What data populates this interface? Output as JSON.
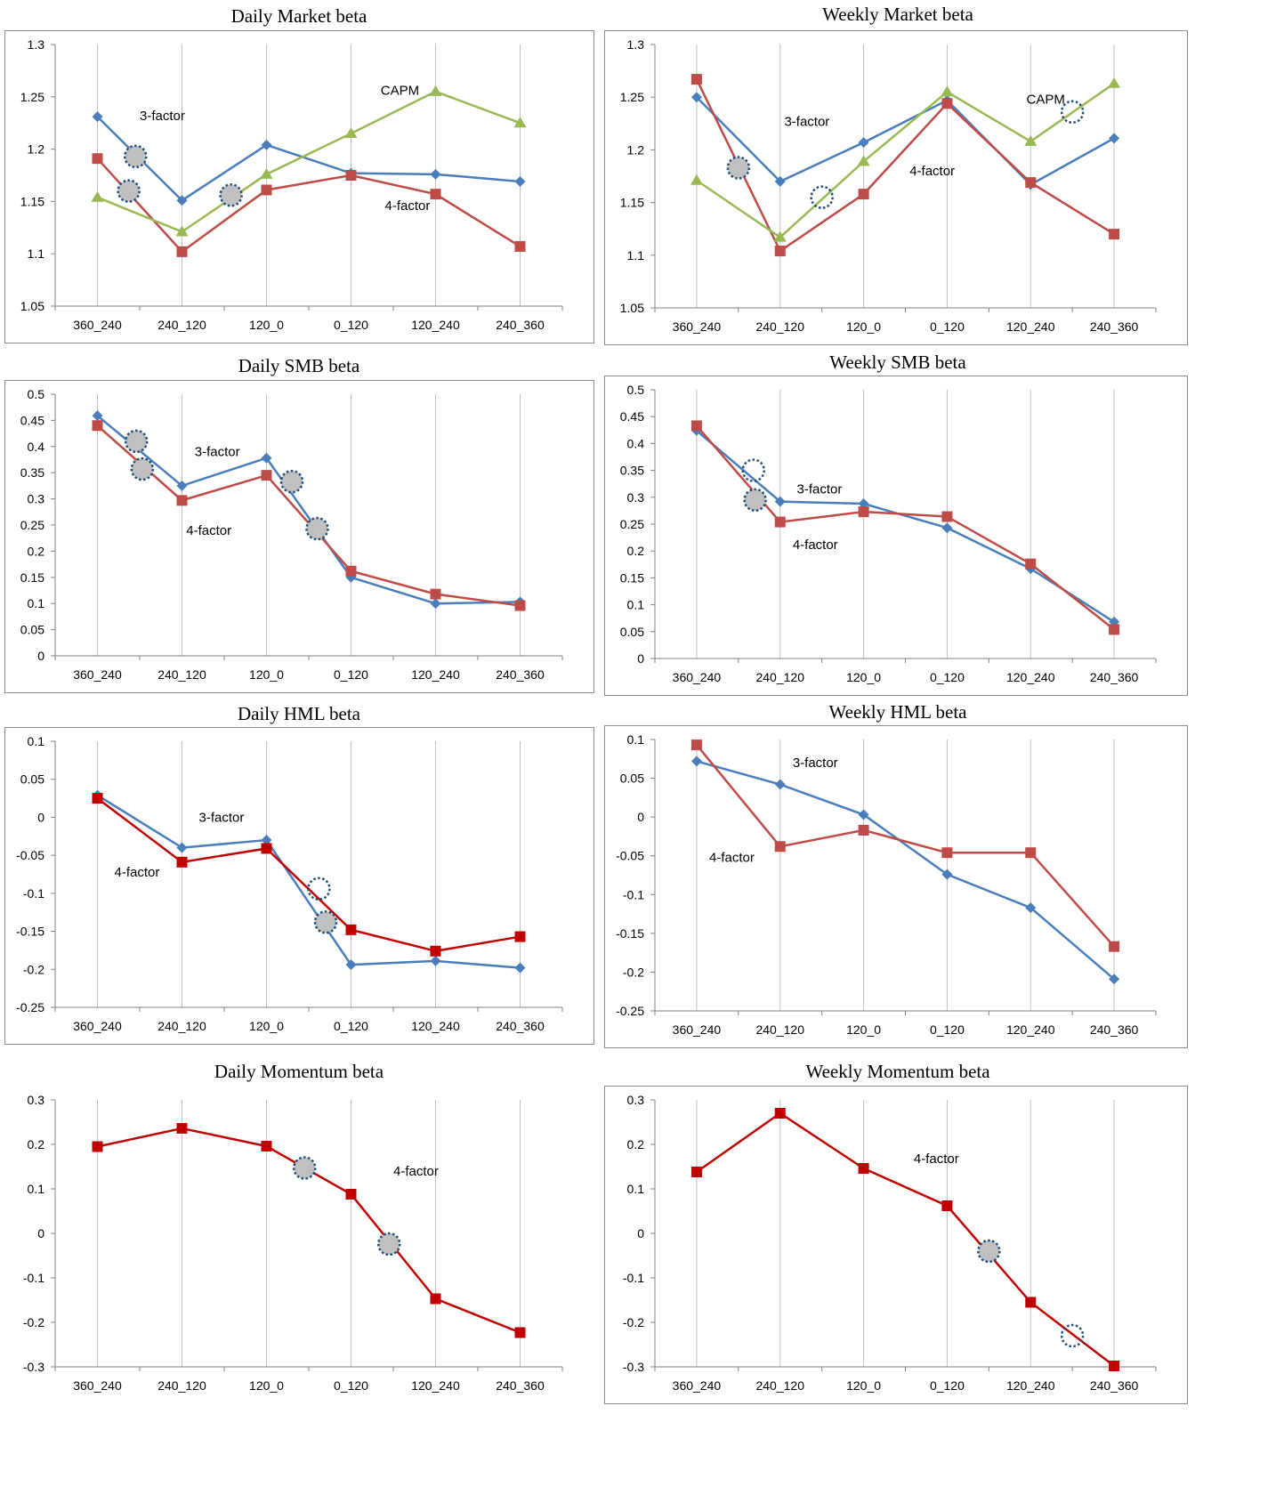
{
  "colors": {
    "3-factor": "#4a7ebb",
    "4-factor": "#be4b48",
    "CAPM": "#98b954",
    "4-factor-momentum": "#c00000",
    "marker_fill": "#c0c0c0",
    "marker_stroke": "#1f4e79",
    "gridline": "#bfbfbf",
    "axis": "#808080"
  },
  "chart_data": [
    {
      "id": "daily-market",
      "type": "line",
      "title": "Daily Market beta",
      "categories": [
        "360_240",
        "240_120",
        "120_0",
        "0_120",
        "120_240",
        "240_360"
      ],
      "ylim": [
        1.05,
        1.3
      ],
      "yticks": [
        "1.05",
        "1.1",
        "1.15",
        "1.2",
        "1.25",
        "1.3"
      ],
      "grid": "vertical",
      "series": [
        {
          "name": "3-factor",
          "marker": "diamond",
          "values": [
            1.231,
            1.151,
            1.204,
            1.177,
            1.176,
            1.169
          ]
        },
        {
          "name": "4-factor",
          "marker": "square",
          "values": [
            1.191,
            1.102,
            1.161,
            1.175,
            1.157,
            1.107
          ]
        },
        {
          "name": "CAPM",
          "marker": "triangle",
          "values": [
            1.154,
            1.121,
            1.176,
            1.215,
            1.255,
            1.225
          ]
        }
      ],
      "annotations": [
        {
          "text": "3-factor",
          "x": 0.5,
          "y": 1.232
        },
        {
          "text": "CAPM",
          "x": 3.35,
          "y": 1.256
        },
        {
          "text": "4-factor",
          "x": 3.4,
          "y": 1.146
        }
      ],
      "highlights": [
        {
          "x": 0.45,
          "y": 1.193,
          "filled": true
        },
        {
          "x": 0.37,
          "y": 1.16,
          "filled": true
        },
        {
          "x": 1.58,
          "y": 1.156,
          "filled": true
        }
      ]
    },
    {
      "id": "weekly-market",
      "type": "line",
      "title": "Weekly Market beta",
      "categories": [
        "360_240",
        "240_120",
        "120_0",
        "0_120",
        "120_240",
        "240_360"
      ],
      "ylim": [
        1.05,
        1.3
      ],
      "yticks": [
        "1.05",
        "1.1",
        "1.15",
        "1.2",
        "1.25",
        "1.3"
      ],
      "grid": "vertical",
      "series": [
        {
          "name": "3-factor",
          "marker": "diamond",
          "values": [
            1.25,
            1.17,
            1.207,
            1.247,
            1.167,
            1.211
          ]
        },
        {
          "name": "4-factor",
          "marker": "square",
          "values": [
            1.267,
            1.104,
            1.158,
            1.244,
            1.169,
            1.12
          ]
        },
        {
          "name": "CAPM",
          "marker": "triangle",
          "values": [
            1.171,
            1.117,
            1.189,
            1.255,
            1.208,
            1.263
          ]
        }
      ],
      "annotations": [
        {
          "text": "3-factor",
          "x": 1.05,
          "y": 1.227
        },
        {
          "text": "4-factor",
          "x": 2.55,
          "y": 1.18
        },
        {
          "text": "CAPM",
          "x": 3.95,
          "y": 1.248
        }
      ],
      "highlights": [
        {
          "x": 0.5,
          "y": 1.183,
          "filled": true
        },
        {
          "x": 1.5,
          "y": 1.155,
          "filled": false
        },
        {
          "x": 4.5,
          "y": 1.236,
          "filled": false
        }
      ]
    },
    {
      "id": "daily-smb",
      "type": "line",
      "title": "Daily SMB beta",
      "categories": [
        "360_240",
        "240_120",
        "120_0",
        "0_120",
        "120_240",
        "240_360"
      ],
      "ylim": [
        0,
        0.5
      ],
      "yticks": [
        "0",
        "0.05",
        "0.1",
        "0.15",
        "0.2",
        "0.25",
        "0.3",
        "0.35",
        "0.4",
        "0.45",
        "0.5"
      ],
      "grid": "vertical",
      "series": [
        {
          "name": "3-factor",
          "marker": "diamond",
          "values": [
            0.459,
            0.325,
            0.378,
            0.15,
            0.1,
            0.103
          ]
        },
        {
          "name": "4-factor",
          "marker": "square",
          "values": [
            0.44,
            0.297,
            0.345,
            0.162,
            0.118,
            0.096
          ]
        }
      ],
      "annotations": [
        {
          "text": "3-factor",
          "x": 1.15,
          "y": 0.39
        },
        {
          "text": "4-factor",
          "x": 1.05,
          "y": 0.24
        }
      ],
      "highlights": [
        {
          "x": 0.46,
          "y": 0.41,
          "filled": true
        },
        {
          "x": 0.53,
          "y": 0.357,
          "filled": true
        },
        {
          "x": 2.3,
          "y": 0.333,
          "filled": true
        },
        {
          "x": 2.6,
          "y": 0.243,
          "filled": true
        }
      ]
    },
    {
      "id": "weekly-smb",
      "type": "line",
      "title": "Weekly SMB beta",
      "categories": [
        "360_240",
        "240_120",
        "120_0",
        "0_120",
        "120_240",
        "240_360"
      ],
      "ylim": [
        0,
        0.5
      ],
      "yticks": [
        "0",
        "0.05",
        "0.1",
        "0.15",
        "0.2",
        "0.25",
        "0.3",
        "0.35",
        "0.4",
        "0.45",
        "0.5"
      ],
      "grid": "vertical",
      "series": [
        {
          "name": "3-factor",
          "marker": "diamond",
          "values": [
            0.424,
            0.292,
            0.288,
            0.243,
            0.167,
            0.068
          ]
        },
        {
          "name": "4-factor",
          "marker": "square",
          "values": [
            0.433,
            0.254,
            0.273,
            0.264,
            0.176,
            0.054
          ]
        }
      ],
      "annotations": [
        {
          "text": "3-factor",
          "x": 1.2,
          "y": 0.315
        },
        {
          "text": "4-factor",
          "x": 1.15,
          "y": 0.212
        }
      ],
      "highlights": [
        {
          "x": 0.68,
          "y": 0.35,
          "filled": false
        },
        {
          "x": 0.7,
          "y": 0.295,
          "filled": true
        }
      ]
    },
    {
      "id": "daily-hml",
      "type": "line",
      "title": "Daily HML beta",
      "categories": [
        "360_240",
        "240_120",
        "120_0",
        "0_120",
        "120_240",
        "240_360"
      ],
      "ylim": [
        -0.25,
        0.1
      ],
      "yticks": [
        "-0.25",
        "-0.2",
        "-0.15",
        "-0.1",
        "-0.05",
        "0",
        "0.05",
        "0.1"
      ],
      "grid": "vertical",
      "series": [
        {
          "name": "3-factor",
          "marker": "diamond",
          "values": [
            0.029,
            -0.04,
            -0.03,
            -0.194,
            -0.189,
            -0.198
          ]
        },
        {
          "name": "4-factor",
          "marker": "square",
          "values": [
            0.025,
            -0.059,
            -0.041,
            -0.148,
            -0.176,
            -0.157
          ]
        }
      ],
      "annotations": [
        {
          "text": "3-factor",
          "x": 1.2,
          "y": 0.0
        },
        {
          "text": "4-factor",
          "x": 0.2,
          "y": -0.072
        }
      ],
      "highlights": [
        {
          "x": 2.62,
          "y": -0.094,
          "filled": false
        },
        {
          "x": 2.7,
          "y": -0.138,
          "filled": true
        }
      ]
    },
    {
      "id": "weekly-hml",
      "type": "line",
      "title": "Weekly HML beta",
      "categories": [
        "360_240",
        "240_120",
        "120_0",
        "0_120",
        "120_240",
        "240_360"
      ],
      "ylim": [
        -0.25,
        0.1
      ],
      "yticks": [
        "-0.25",
        "-0.2",
        "-0.15",
        "-0.1",
        "-0.05",
        "0",
        "0.05",
        "0.1"
      ],
      "grid": "vertical",
      "series": [
        {
          "name": "3-factor",
          "marker": "diamond",
          "values": [
            0.072,
            0.042,
            0.003,
            -0.074,
            -0.117,
            -0.209
          ]
        },
        {
          "name": "4-factor",
          "marker": "square",
          "values": [
            0.093,
            -0.038,
            -0.017,
            -0.046,
            -0.046,
            -0.167
          ]
        }
      ],
      "annotations": [
        {
          "text": "3-factor",
          "x": 1.15,
          "y": 0.07
        },
        {
          "text": "4-factor",
          "x": 0.15,
          "y": -0.052
        }
      ],
      "highlights": []
    },
    {
      "id": "daily-momentum",
      "type": "line",
      "title": "Daily Momentum beta",
      "categories": [
        "360_240",
        "240_120",
        "120_0",
        "0_120",
        "120_240",
        "240_360"
      ],
      "ylim": [
        -0.3,
        0.3
      ],
      "yticks": [
        "-0.3",
        "-0.2",
        "-0.1",
        "0",
        "0.1",
        "0.2",
        "0.3"
      ],
      "grid": "vertical",
      "series": [
        {
          "name": "4-factor",
          "marker": "square",
          "values": [
            0.195,
            0.236,
            0.196,
            0.088,
            -0.147,
            -0.223
          ]
        }
      ],
      "annotations": [
        {
          "text": "4-factor",
          "x": 3.5,
          "y": 0.14
        }
      ],
      "highlights": [
        {
          "x": 2.45,
          "y": 0.147,
          "filled": true
        },
        {
          "x": 3.45,
          "y": -0.024,
          "filled": true
        }
      ]
    },
    {
      "id": "weekly-momentum",
      "type": "line",
      "title": "Weekly Momentum beta",
      "categories": [
        "360_240",
        "240_120",
        "120_0",
        "0_120",
        "120_240",
        "240_360"
      ],
      "ylim": [
        -0.3,
        0.3
      ],
      "yticks": [
        "-0.3",
        "-0.2",
        "-0.1",
        "0",
        "0.1",
        "0.2",
        "0.3"
      ],
      "grid": "vertical",
      "series": [
        {
          "name": "4-factor",
          "marker": "square",
          "values": [
            0.138,
            0.27,
            0.146,
            0.062,
            -0.155,
            -0.298
          ]
        }
      ],
      "annotations": [
        {
          "text": "4-factor",
          "x": 2.6,
          "y": 0.168
        }
      ],
      "highlights": [
        {
          "x": 3.5,
          "y": -0.04,
          "filled": true
        },
        {
          "x": 4.5,
          "y": -0.23,
          "filled": false
        }
      ]
    }
  ]
}
